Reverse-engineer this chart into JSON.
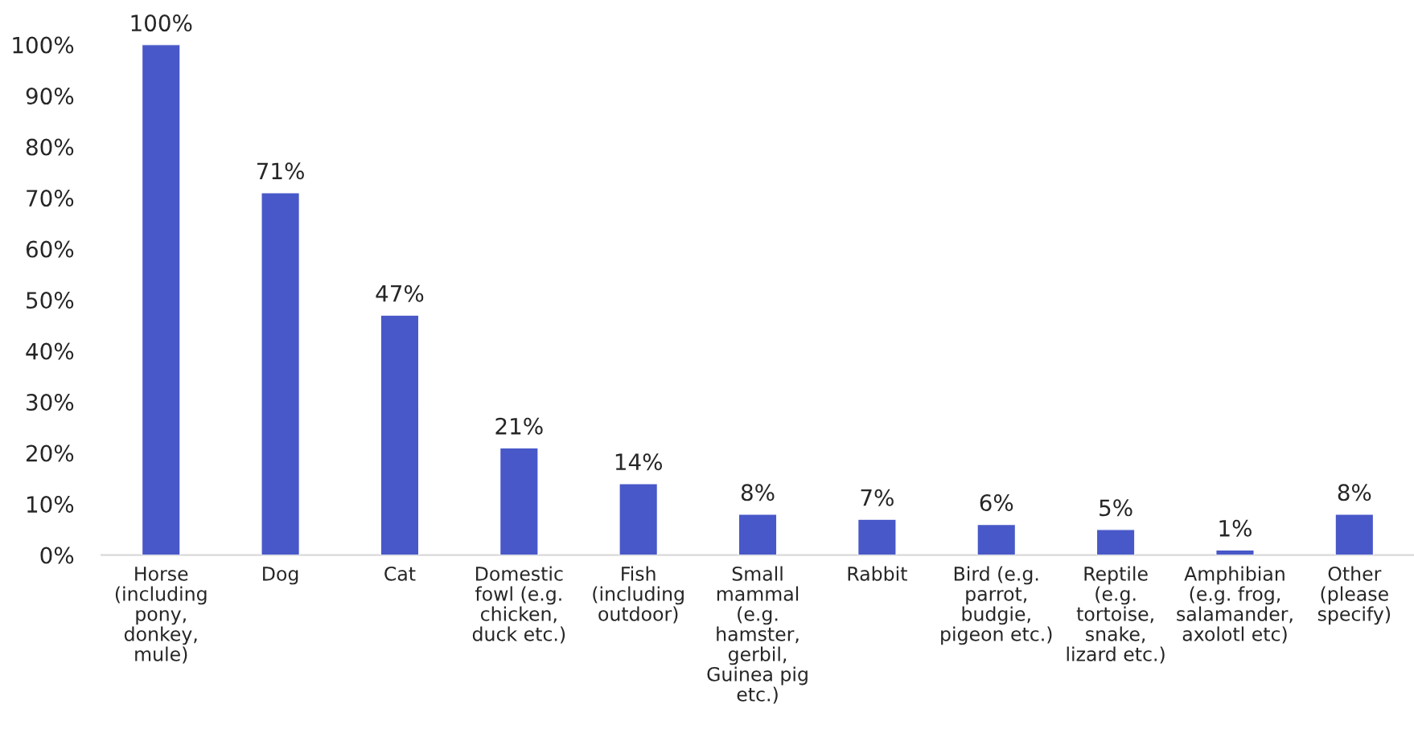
{
  "chart_data": {
    "type": "bar",
    "categories": [
      "Horse\n(including\npony,\ndonkey,\nmule)",
      "Dog",
      "Cat",
      "Domestic\nfowl (e.g.\nchicken,\nduck etc.)",
      "Fish\n(including\noutdoor)",
      "Small\nmammal\n(e.g.\nhamster,\ngerbil,\nGuinea pig\netc.)",
      "Rabbit",
      "Bird (e.g.\nparrot,\nbudgie,\npigeon etc.)",
      "Reptile\n(e.g.\ntortoise,\nsnake,\nlizard etc.)",
      "Amphibian\n(e.g. frog,\nsalamander,\naxolotl etc)",
      "Other\n(please\nspecify)"
    ],
    "values": [
      100,
      71,
      47,
      21,
      14,
      8,
      7,
      6,
      5,
      1,
      8
    ],
    "value_labels": [
      "100%",
      "71%",
      "47%",
      "21%",
      "14%",
      "8%",
      "7%",
      "6%",
      "5%",
      "1%",
      "8%"
    ],
    "color": "#4858c8",
    "ylim": [
      0,
      100
    ],
    "yticks": [
      {
        "value": 0,
        "label": "0%"
      },
      {
        "value": 10,
        "label": "10%"
      },
      {
        "value": 20,
        "label": "20%"
      },
      {
        "value": 30,
        "label": "30%"
      },
      {
        "value": 40,
        "label": "40%"
      },
      {
        "value": 50,
        "label": "50%"
      },
      {
        "value": 60,
        "label": "60%"
      },
      {
        "value": 70,
        "label": "70%"
      },
      {
        "value": 80,
        "label": "80%"
      },
      {
        "value": 90,
        "label": "90%"
      },
      {
        "value": 100,
        "label": "100%"
      }
    ],
    "grid": false
  }
}
